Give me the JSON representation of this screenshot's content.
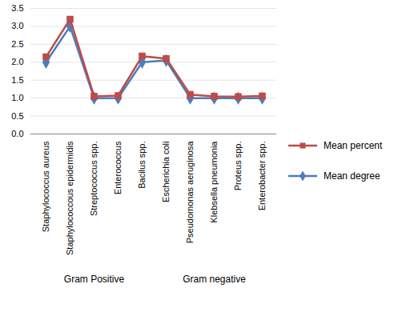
{
  "chart_data": {
    "type": "line",
    "categories": [
      "Staphylococcus aureus",
      "Staphylococcous epidermidis",
      "Streptococcus spp.",
      "Enterococcus",
      "Bacilus spp.",
      "Escherichia coli",
      "Pseudomonas aeruginosa",
      "Klebsella pneumonia",
      "Proteus spp.",
      "Enterobacter spp."
    ],
    "category_groups": [
      {
        "label": "Gram Positive",
        "size": 5
      },
      {
        "label": "Gram negative",
        "size": 5
      }
    ],
    "series": [
      {
        "name": "Mean percent",
        "color": "#be4b48",
        "marker": "square",
        "values": [
          2.15,
          3.2,
          1.05,
          1.07,
          2.17,
          2.1,
          1.1,
          1.05,
          1.04,
          1.06
        ]
      },
      {
        "name": "Mean degree",
        "color": "#4a7ebb",
        "marker": "diamond",
        "values": [
          2.0,
          3.0,
          1.0,
          1.0,
          2.0,
          2.05,
          1.0,
          1.0,
          1.0,
          1.0
        ]
      }
    ],
    "ylim": [
      0,
      3.5
    ],
    "yticks": [
      0,
      0.5,
      1,
      1.5,
      2,
      2.5,
      3,
      3.5
    ],
    "grid": true,
    "legend": "right"
  }
}
